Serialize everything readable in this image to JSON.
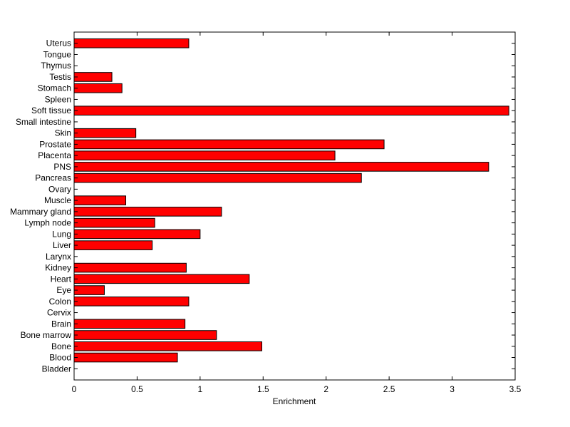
{
  "chart_data": {
    "type": "bar",
    "orientation": "horizontal",
    "title": "",
    "xlabel": "Enrichment",
    "ylabel": "",
    "xlim": [
      0,
      3.5
    ],
    "x_ticks": [
      "0",
      "0.5",
      "1",
      "1.5",
      "2",
      "2.5",
      "3",
      "3.5"
    ],
    "grid": false,
    "bar_color": "#ff0000",
    "bar_edge_color": "#000000",
    "categories": [
      "Bladder",
      "Blood",
      "Bone",
      "Bone marrow",
      "Brain",
      "Cervix",
      "Colon",
      "Eye",
      "Heart",
      "Kidney",
      "Larynx",
      "Liver",
      "Lung",
      "Lymph node",
      "Mammary gland",
      "Muscle",
      "Ovary",
      "Pancreas",
      "PNS",
      "Placenta",
      "Prostate",
      "Skin",
      "Small intestine",
      "Soft tissue",
      "Spleen",
      "Stomach",
      "Testis",
      "Thymus",
      "Tongue",
      "Uterus"
    ],
    "values": [
      0,
      0.82,
      1.49,
      1.13,
      0.88,
      0,
      0.91,
      0.24,
      1.39,
      0.89,
      0,
      0.62,
      1.0,
      0.64,
      1.17,
      0.41,
      0,
      2.28,
      3.29,
      2.07,
      2.46,
      0.49,
      0,
      3.45,
      0,
      0.38,
      0.3,
      0,
      0,
      0.91
    ]
  }
}
